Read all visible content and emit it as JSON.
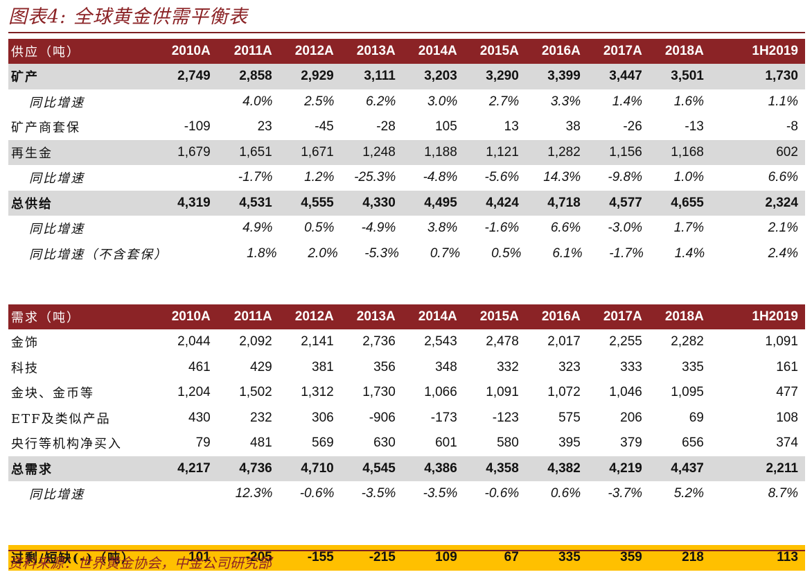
{
  "title": "图表4: 全球黄金供需平衡表",
  "source": "资料来源：世界黄金协会，中金公司研究部",
  "columns": [
    "2010A",
    "2011A",
    "2012A",
    "2013A",
    "2014A",
    "2015A",
    "2016A",
    "2017A",
    "2018A",
    "1H2019"
  ],
  "supply": {
    "header": "供应（吨）",
    "rows": [
      {
        "label": "矿产",
        "style": "shade bold",
        "values": [
          "2,749",
          "2,858",
          "2,929",
          "3,111",
          "3,203",
          "3,290",
          "3,399",
          "3,447",
          "3,501",
          "1,730"
        ]
      },
      {
        "label": "同比增速",
        "style": "ital",
        "values": [
          "",
          "4.0%",
          "2.5%",
          "6.2%",
          "3.0%",
          "2.7%",
          "3.3%",
          "1.4%",
          "1.6%",
          "1.1%"
        ]
      },
      {
        "label": "矿产商套保",
        "style": "",
        "values": [
          "-109",
          "23",
          "-45",
          "-28",
          "105",
          "13",
          "38",
          "-26",
          "-13",
          "-8"
        ]
      },
      {
        "label": "再生金",
        "style": "shade",
        "values": [
          "1,679",
          "1,651",
          "1,671",
          "1,248",
          "1,188",
          "1,121",
          "1,282",
          "1,156",
          "1,168",
          "602"
        ]
      },
      {
        "label": "同比增速",
        "style": "ital",
        "values": [
          "",
          "-1.7%",
          "1.2%",
          "-25.3%",
          "-4.8%",
          "-5.6%",
          "14.3%",
          "-9.8%",
          "1.0%",
          "6.6%"
        ]
      },
      {
        "label": "总供给",
        "style": "shade bold",
        "values": [
          "4,319",
          "4,531",
          "4,555",
          "4,330",
          "4,495",
          "4,424",
          "4,718",
          "4,577",
          "4,655",
          "2,324"
        ]
      },
      {
        "label": "同比增速",
        "style": "ital",
        "values": [
          "",
          "4.9%",
          "0.5%",
          "-4.9%",
          "3.8%",
          "-1.6%",
          "6.6%",
          "-3.0%",
          "1.7%",
          "2.1%"
        ]
      },
      {
        "label": "同比增速（不含套保）",
        "style": "ital",
        "values": [
          "",
          "1.8%",
          "2.0%",
          "-5.3%",
          "0.7%",
          "0.5%",
          "6.1%",
          "-1.7%",
          "1.4%",
          "2.4%"
        ]
      }
    ]
  },
  "demand": {
    "header": "需求（吨）",
    "rows": [
      {
        "label": "金饰",
        "style": "",
        "values": [
          "2,044",
          "2,092",
          "2,141",
          "2,736",
          "2,543",
          "2,478",
          "2,017",
          "2,255",
          "2,282",
          "1,091"
        ]
      },
      {
        "label": "科技",
        "style": "",
        "values": [
          "461",
          "429",
          "381",
          "356",
          "348",
          "332",
          "323",
          "333",
          "335",
          "161"
        ]
      },
      {
        "label": "金块、金币等",
        "style": "",
        "values": [
          "1,204",
          "1,502",
          "1,312",
          "1,730",
          "1,066",
          "1,091",
          "1,072",
          "1,046",
          "1,095",
          "477"
        ]
      },
      {
        "label": "ETF及类似产品",
        "style": "",
        "values": [
          "430",
          "232",
          "306",
          "-906",
          "-173",
          "-123",
          "575",
          "206",
          "69",
          "108"
        ]
      },
      {
        "label": "央行等机构净买入",
        "style": "",
        "values": [
          "79",
          "481",
          "569",
          "630",
          "601",
          "580",
          "395",
          "379",
          "656",
          "374"
        ]
      },
      {
        "label": "总需求",
        "style": "shade bold",
        "values": [
          "4,217",
          "4,736",
          "4,710",
          "4,545",
          "4,386",
          "4,358",
          "4,382",
          "4,219",
          "4,437",
          "2,211"
        ]
      },
      {
        "label": "同比增速",
        "style": "ital",
        "values": [
          "",
          "12.3%",
          "-0.6%",
          "-3.5%",
          "-3.5%",
          "-0.6%",
          "0.6%",
          "-3.7%",
          "5.2%",
          "8.7%"
        ]
      }
    ]
  },
  "balance": {
    "label": "过剩/短缺(-)（吨）",
    "values": [
      "101",
      "-205",
      "-155",
      "-215",
      "109",
      "67",
      "335",
      "359",
      "218",
      "113"
    ]
  },
  "colors": {
    "header_bg": "#8B2326",
    "shade_bg": "#D9D9D9",
    "balance_bg": "#FFC000",
    "title": "#8B2326"
  }
}
